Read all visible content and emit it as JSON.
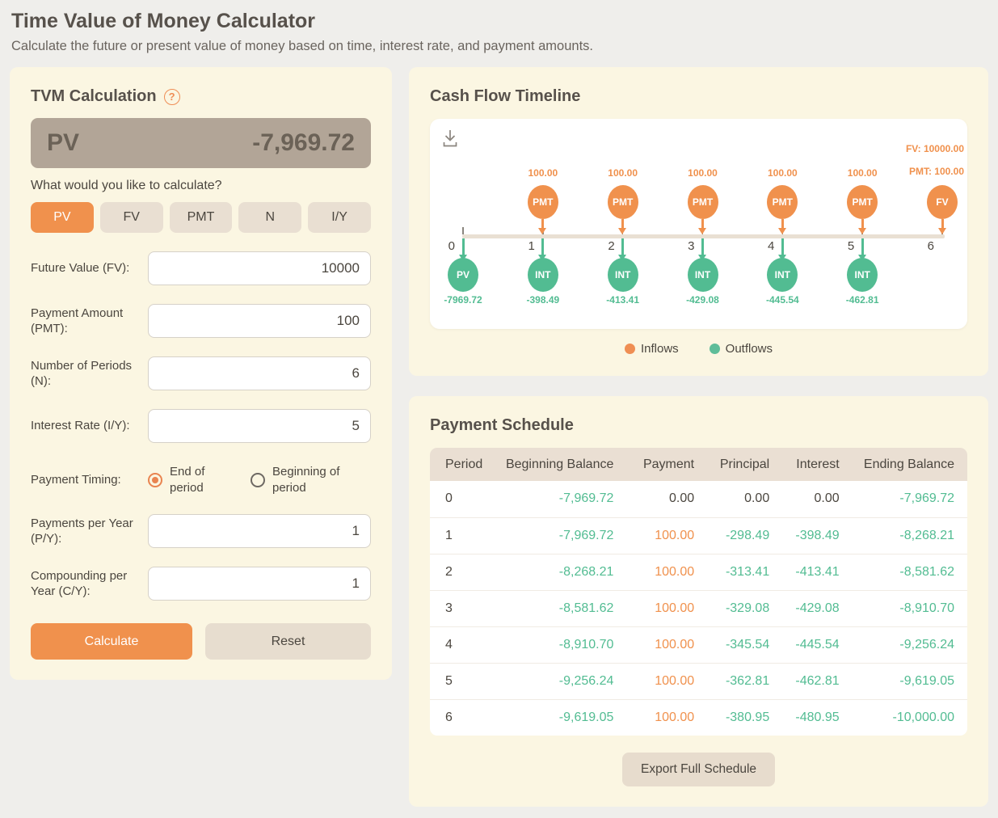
{
  "page": {
    "title": "Time Value of Money Calculator",
    "subtitle": "Calculate the future or present value of money based on time, interest rate, and payment amounts."
  },
  "theme": {
    "inflow_orange": "#f0914d",
    "outflow_green": "#52bc92",
    "axis_beige": "#e9e0d3",
    "tick_gray": "#8a857e",
    "neutral_text": "#4b463f",
    "panel_cream": "#fbf6e2",
    "result_bg": "#b2a597"
  },
  "tvm": {
    "title": "TVM Calculation",
    "help_icon": "?",
    "result": {
      "label": "PV",
      "value": "-7,969.72"
    },
    "prompt": "What would you like to calculate?",
    "calc_options": [
      {
        "label": "PV",
        "active": true
      },
      {
        "label": "FV",
        "active": false
      },
      {
        "label": "PMT",
        "active": false
      },
      {
        "label": "N",
        "active": false
      },
      {
        "label": "I/Y",
        "active": false
      }
    ],
    "fields": [
      {
        "label": "Future Value (FV):",
        "value": "10000"
      },
      {
        "label": "Payment Amount (PMT):",
        "value": "100"
      },
      {
        "label": "Number of Periods (N):",
        "value": "6"
      },
      {
        "label": "Interest Rate (I/Y):",
        "value": "5"
      }
    ],
    "timing": {
      "label": "Payment Timing:",
      "options": [
        {
          "label": "End of period",
          "selected": true
        },
        {
          "label": "Beginning of period",
          "selected": false
        }
      ]
    },
    "fields2": [
      {
        "label": "Payments per Year (P/Y):",
        "value": "1"
      },
      {
        "label": "Compounding per Year (C/Y):",
        "value": "1"
      }
    ],
    "calculate_label": "Calculate",
    "reset_label": "Reset"
  },
  "timeline_panel": {
    "title": "Cash Flow Timeline"
  },
  "chart_data": {
    "type": "timeline",
    "title": "Cash Flow Timeline",
    "x_ticks": [
      0,
      1,
      2,
      3,
      4,
      5,
      6
    ],
    "inflow_events": [
      {
        "period": 1,
        "badge": "PMT",
        "label": "100.00"
      },
      {
        "period": 2,
        "badge": "PMT",
        "label": "100.00"
      },
      {
        "period": 3,
        "badge": "PMT",
        "label": "100.00"
      },
      {
        "period": 4,
        "badge": "PMT",
        "label": "100.00"
      },
      {
        "period": 5,
        "badge": "PMT",
        "label": "100.00"
      },
      {
        "period": 6,
        "badge": "FV",
        "labels": [
          "FV: 10000.00",
          "PMT: 100.00"
        ],
        "label_align": "right"
      }
    ],
    "outflow_events": [
      {
        "period": 0,
        "badge": "PV",
        "label": "-7969.72"
      },
      {
        "period": 1,
        "badge": "INT",
        "label": "-398.49"
      },
      {
        "period": 2,
        "badge": "INT",
        "label": "-413.41"
      },
      {
        "period": 3,
        "badge": "INT",
        "label": "-429.08"
      },
      {
        "period": 4,
        "badge": "INT",
        "label": "-445.54"
      },
      {
        "period": 5,
        "badge": "INT",
        "label": "-462.81"
      }
    ],
    "legend": [
      {
        "label": "Inflows",
        "color": "#ef8e53"
      },
      {
        "label": "Outflows",
        "color": "#5ebd99"
      }
    ],
    "layout": {
      "axis_on": true,
      "legend_position": "bottom-center"
    }
  },
  "schedule": {
    "title": "Payment Schedule",
    "columns": [
      "Period",
      "Beginning Balance",
      "Payment",
      "Principal",
      "Interest",
      "Ending Balance"
    ],
    "rows": [
      [
        "0",
        "-7,969.72",
        "0.00",
        "0.00",
        "0.00",
        "-7,969.72"
      ],
      [
        "1",
        "-7,969.72",
        "100.00",
        "-298.49",
        "-398.49",
        "-8,268.21"
      ],
      [
        "2",
        "-8,268.21",
        "100.00",
        "-313.41",
        "-413.41",
        "-8,581.62"
      ],
      [
        "3",
        "-8,581.62",
        "100.00",
        "-329.08",
        "-429.08",
        "-8,910.70"
      ],
      [
        "4",
        "-8,910.70",
        "100.00",
        "-345.54",
        "-445.54",
        "-9,256.24"
      ],
      [
        "5",
        "-9,256.24",
        "100.00",
        "-362.81",
        "-462.81",
        "-9,619.05"
      ],
      [
        "6",
        "-9,619.05",
        "100.00",
        "-380.95",
        "-480.95",
        "-10,000.00"
      ]
    ],
    "export_label": "Export Full Schedule"
  }
}
